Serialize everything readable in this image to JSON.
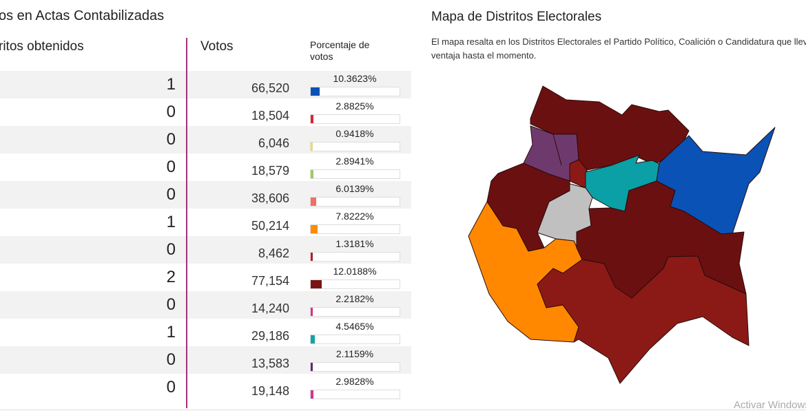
{
  "left": {
    "title": "os en Actas Contabilizadas",
    "headers": {
      "distritos": "ritos obtenidos",
      "votos": "Votos",
      "porcentaje": "Porcentaje de votos"
    },
    "rows": [
      {
        "distritos": "1",
        "votos": "66,520",
        "pct": "10.3623%",
        "pct_value": 10.3623,
        "color": "#0b50b5"
      },
      {
        "distritos": "0",
        "votos": "18,504",
        "pct": "2.8825%",
        "pct_value": 2.8825,
        "color": "#d7263d"
      },
      {
        "distritos": "0",
        "votos": "6,046",
        "pct": "0.9418%",
        "pct_value": 0.9418,
        "color": "#e3df7a"
      },
      {
        "distritos": "0",
        "votos": "18,579",
        "pct": "2.8941%",
        "pct_value": 2.8941,
        "color": "#9ccc65"
      },
      {
        "distritos": "0",
        "votos": "38,606",
        "pct": "6.0139%",
        "pct_value": 6.0139,
        "color": "#f07060"
      },
      {
        "distritos": "1",
        "votos": "50,214",
        "pct": "7.8222%",
        "pct_value": 7.8222,
        "color": "#ff8c00"
      },
      {
        "distritos": "0",
        "votos": "8,462",
        "pct": "1.3181%",
        "pct_value": 1.3181,
        "color": "#b0202a"
      },
      {
        "distritos": "2",
        "votos": "77,154",
        "pct": "12.0188%",
        "pct_value": 12.0188,
        "color": "#7a1414"
      },
      {
        "distritos": "0",
        "votos": "14,240",
        "pct": "2.2182%",
        "pct_value": 2.2182,
        "color": "#d63384"
      },
      {
        "distritos": "1",
        "votos": "29,186",
        "pct": "4.5465%",
        "pct_value": 4.5465,
        "color": "#17a2a8"
      },
      {
        "distritos": "0",
        "votos": "13,583",
        "pct": "2.1159%",
        "pct_value": 2.1159,
        "color": "#5b2c6f"
      },
      {
        "distritos": "0",
        "votos": "19,148",
        "pct": "2.9828%",
        "pct_value": 2.9828,
        "color": "#d6338c"
      }
    ]
  },
  "map": {
    "title": "Mapa de Distritos Electorales",
    "description": "El mapa resalta en los Distritos Electorales el Partido Político, Coalición o Candidatura que lleva ventaja hasta el momento.",
    "colors": {
      "dark_red": "#6b1010",
      "red": "#8b1a17",
      "purple": "#6e3a6e",
      "teal": "#0aa0a5",
      "blue": "#0a52b5",
      "gray": "#c0c0c0",
      "orange": "#ff8800"
    }
  },
  "watermark": "Activar Windows"
}
